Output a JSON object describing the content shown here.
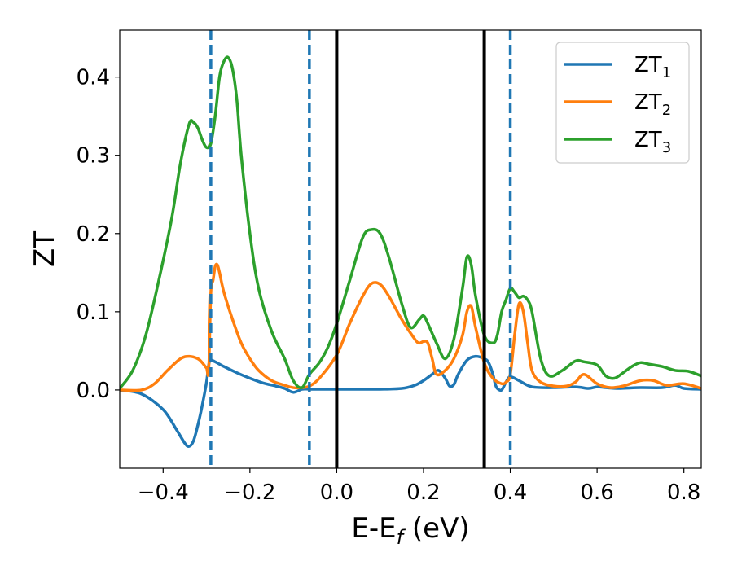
{
  "chart_data": {
    "type": "line",
    "xlabel": "E-E",
    "xlabel_sub": "f",
    "xlabel_unit": " (eV)",
    "ylabel": "ZT",
    "xlim": [
      -0.5,
      0.84
    ],
    "ylim": [
      -0.1,
      0.46
    ],
    "xticks": [
      -0.4,
      -0.2,
      0.0,
      0.2,
      0.4,
      0.6,
      0.8
    ],
    "xtick_labels": [
      "−0.4",
      "−0.2",
      "0.0",
      "0.2",
      "0.4",
      "0.6",
      "0.8"
    ],
    "yticks": [
      0.0,
      0.1,
      0.2,
      0.3,
      0.4
    ],
    "ytick_labels": [
      "0.0",
      "0.1",
      "0.2",
      "0.3",
      "0.4"
    ],
    "grid": false,
    "legend_position": "top-right",
    "vlines": [
      {
        "x": -0.29,
        "style": "dashed",
        "color": "#1f77b4"
      },
      {
        "x": -0.063,
        "style": "dashed",
        "color": "#1f77b4"
      },
      {
        "x": 0.0,
        "style": "solid",
        "color": "#000000"
      },
      {
        "x": 0.34,
        "style": "solid",
        "color": "#000000"
      },
      {
        "x": 0.4,
        "style": "dashed",
        "color": "#1f77b4"
      }
    ],
    "series": [
      {
        "name": "ZT",
        "sub": "1",
        "color": "#1f77b4",
        "x": [
          -0.5,
          -0.45,
          -0.4,
          -0.37,
          -0.35,
          -0.34,
          -0.33,
          -0.32,
          -0.31,
          -0.3,
          -0.295,
          -0.29,
          -0.28,
          -0.26,
          -0.23,
          -0.2,
          -0.17,
          -0.14,
          -0.12,
          -0.1,
          -0.08,
          -0.063,
          -0.04,
          0.0,
          0.05,
          0.1,
          0.15,
          0.18,
          0.2,
          0.22,
          0.235,
          0.25,
          0.26,
          0.27,
          0.28,
          0.3,
          0.32,
          0.34,
          0.35,
          0.36,
          0.365,
          0.37,
          0.38,
          0.39,
          0.4,
          0.42,
          0.45,
          0.5,
          0.55,
          0.58,
          0.6,
          0.62,
          0.65,
          0.7,
          0.75,
          0.78,
          0.8,
          0.84
        ],
        "y": [
          0.0,
          -0.005,
          -0.025,
          -0.05,
          -0.068,
          -0.072,
          -0.065,
          -0.045,
          -0.02,
          0.01,
          0.032,
          0.038,
          0.036,
          0.03,
          0.022,
          0.015,
          0.009,
          0.005,
          0.002,
          -0.003,
          0.001,
          0.001,
          0.001,
          0.001,
          0.001,
          0.001,
          0.002,
          0.006,
          0.012,
          0.02,
          0.025,
          0.015,
          0.005,
          0.007,
          0.02,
          0.038,
          0.043,
          0.04,
          0.035,
          0.02,
          0.008,
          0.002,
          0.0,
          0.01,
          0.017,
          0.012,
          0.004,
          0.003,
          0.004,
          0.002,
          0.004,
          0.003,
          0.002,
          0.003,
          0.003,
          0.006,
          0.002,
          0.001
        ]
      },
      {
        "name": "ZT",
        "sub": "2",
        "color": "#ff7f0e",
        "x": [
          -0.5,
          -0.45,
          -0.42,
          -0.39,
          -0.36,
          -0.34,
          -0.32,
          -0.31,
          -0.3,
          -0.295,
          -0.29,
          -0.285,
          -0.28,
          -0.275,
          -0.27,
          -0.26,
          -0.24,
          -0.22,
          -0.2,
          -0.18,
          -0.15,
          -0.12,
          -0.1,
          -0.08,
          -0.063,
          -0.04,
          0.0,
          0.03,
          0.06,
          0.08,
          0.1,
          0.12,
          0.15,
          0.18,
          0.19,
          0.2,
          0.21,
          0.22,
          0.23,
          0.25,
          0.27,
          0.29,
          0.3,
          0.31,
          0.32,
          0.34,
          0.36,
          0.38,
          0.39,
          0.4,
          0.41,
          0.42,
          0.43,
          0.44,
          0.45,
          0.47,
          0.5,
          0.53,
          0.55,
          0.57,
          0.6,
          0.63,
          0.66,
          0.7,
          0.73,
          0.76,
          0.8,
          0.84
        ],
        "y": [
          0.0,
          0.0,
          0.008,
          0.025,
          0.04,
          0.043,
          0.04,
          0.035,
          0.028,
          0.025,
          0.125,
          0.14,
          0.158,
          0.16,
          0.15,
          0.125,
          0.09,
          0.06,
          0.04,
          0.025,
          0.012,
          0.006,
          0.003,
          0.003,
          0.005,
          0.015,
          0.045,
          0.085,
          0.12,
          0.136,
          0.135,
          0.12,
          0.09,
          0.065,
          0.06,
          0.062,
          0.06,
          0.04,
          0.02,
          0.025,
          0.04,
          0.07,
          0.1,
          0.107,
          0.08,
          0.035,
          0.015,
          0.008,
          0.01,
          0.02,
          0.07,
          0.11,
          0.1,
          0.06,
          0.025,
          0.01,
          0.005,
          0.005,
          0.01,
          0.02,
          0.008,
          0.003,
          0.005,
          0.012,
          0.012,
          0.006,
          0.008,
          0.002
        ]
      },
      {
        "name": "ZT",
        "sub": "3",
        "color": "#2ca02c",
        "x": [
          -0.5,
          -0.47,
          -0.44,
          -0.41,
          -0.38,
          -0.36,
          -0.34,
          -0.33,
          -0.32,
          -0.31,
          -0.3,
          -0.29,
          -0.28,
          -0.27,
          -0.26,
          -0.25,
          -0.24,
          -0.23,
          -0.22,
          -0.2,
          -0.18,
          -0.15,
          -0.12,
          -0.1,
          -0.08,
          -0.063,
          -0.04,
          -0.02,
          0.0,
          0.03,
          0.06,
          0.08,
          0.1,
          0.12,
          0.15,
          0.17,
          0.19,
          0.2,
          0.21,
          0.23,
          0.25,
          0.27,
          0.29,
          0.3,
          0.31,
          0.32,
          0.34,
          0.36,
          0.37,
          0.38,
          0.39,
          0.4,
          0.41,
          0.42,
          0.43,
          0.44,
          0.45,
          0.47,
          0.49,
          0.52,
          0.55,
          0.57,
          0.6,
          0.62,
          0.64,
          0.66,
          0.68,
          0.7,
          0.72,
          0.75,
          0.78,
          0.81,
          0.84
        ],
        "y": [
          0.002,
          0.025,
          0.07,
          0.14,
          0.22,
          0.29,
          0.34,
          0.342,
          0.335,
          0.32,
          0.31,
          0.315,
          0.35,
          0.4,
          0.42,
          0.425,
          0.41,
          0.37,
          0.3,
          0.2,
          0.13,
          0.075,
          0.04,
          0.012,
          0.003,
          0.02,
          0.035,
          0.055,
          0.085,
          0.14,
          0.195,
          0.205,
          0.2,
          0.17,
          0.11,
          0.08,
          0.09,
          0.095,
          0.085,
          0.06,
          0.04,
          0.065,
          0.13,
          0.17,
          0.16,
          0.12,
          0.07,
          0.06,
          0.07,
          0.1,
          0.115,
          0.13,
          0.125,
          0.118,
          0.12,
          0.115,
          0.1,
          0.04,
          0.018,
          0.025,
          0.037,
          0.036,
          0.032,
          0.018,
          0.015,
          0.022,
          0.03,
          0.035,
          0.033,
          0.03,
          0.025,
          0.024,
          0.018
        ]
      }
    ]
  }
}
